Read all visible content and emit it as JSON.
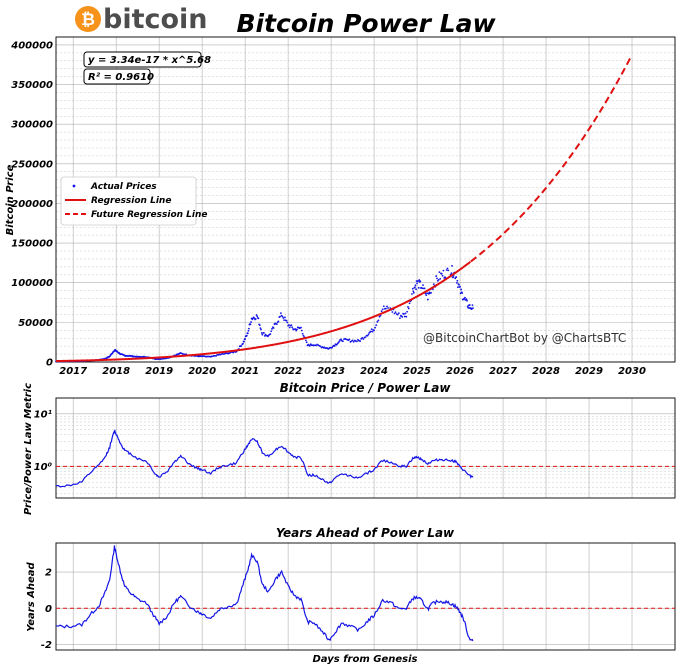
{
  "header": {
    "logo_text": "bitcoin",
    "logo_symbol": "₿",
    "title": "Bitcoin Power Law"
  },
  "watermark": "@BitcoinChartBot by @ChartsBTC",
  "colors": {
    "actual": "#1515e6",
    "regression": "#e01010",
    "reference": "#e01010",
    "logo_orange": "#f7931a"
  },
  "chart_data": [
    {
      "type": "scatter",
      "title": "",
      "xlabel": "",
      "ylabel": "Bitcoin Price",
      "xlim": [
        2016.6,
        2031.0
      ],
      "ylim": [
        0,
        410000
      ],
      "x_ticks": [
        2017,
        2018,
        2019,
        2020,
        2021,
        2022,
        2023,
        2024,
        2025,
        2026,
        2027,
        2028,
        2029,
        2030
      ],
      "y_ticks": [
        0,
        50000,
        100000,
        150000,
        200000,
        250000,
        300000,
        350000,
        400000
      ],
      "grid": true,
      "legend_position": "center-left",
      "legend": [
        "Actual Prices",
        "Regression Line",
        "Future Regression Line"
      ],
      "equation_box": [
        "y = 3.34e-17 * x^5.68",
        "R² = 0.9610"
      ],
      "regression": {
        "a": 3.34e-17,
        "b": 5.68,
        "x_variable": "days since genesis block"
      },
      "regression_end_year": 2026.25,
      "future_end_year": 2030.0,
      "series": [
        {
          "name": "Actual Prices",
          "style": "points",
          "x": [
            2016.6,
            2016.9,
            2017.2,
            2017.4,
            2017.6,
            2017.75,
            2017.85,
            2017.96,
            2018.0,
            2018.1,
            2018.2,
            2018.35,
            2018.5,
            2018.7,
            2018.9,
            2019.0,
            2019.2,
            2019.35,
            2019.5,
            2019.7,
            2019.9,
            2020.0,
            2020.2,
            2020.4,
            2020.6,
            2020.8,
            2020.95,
            2021.05,
            2021.15,
            2021.28,
            2021.4,
            2021.55,
            2021.7,
            2021.85,
            2022.0,
            2022.15,
            2022.3,
            2022.45,
            2022.6,
            2022.8,
            2022.95,
            2023.1,
            2023.25,
            2023.45,
            2023.65,
            2023.85,
            2024.0,
            2024.2,
            2024.4,
            2024.6,
            2024.75,
            2024.9,
            2025.0,
            2025.1,
            2025.25,
            2025.35,
            2025.5,
            2025.65,
            2025.8,
            2025.9,
            2026.0,
            2026.1,
            2026.2,
            2026.3
          ],
          "y": [
            600,
            800,
            1000,
            1800,
            2700,
            4300,
            7000,
            15000,
            14000,
            10000,
            8000,
            7500,
            6500,
            6500,
            4000,
            3600,
            5000,
            8000,
            11000,
            8500,
            7300,
            7200,
            6500,
            9200,
            11000,
            13500,
            24000,
            35000,
            55000,
            58000,
            36000,
            33000,
            47000,
            60000,
            47000,
            41000,
            43000,
            21000,
            22000,
            19000,
            16800,
            22000,
            28000,
            27000,
            26500,
            35000,
            42000,
            68000,
            66000,
            58000,
            60000,
            90000,
            100000,
            96000,
            82000,
            95000,
            107000,
            112000,
            115000,
            110000,
            90000,
            80000,
            70000,
            68000
          ]
        },
        {
          "name": "Regression Line",
          "style": "solid"
        },
        {
          "name": "Future Regression Line",
          "style": "dashed"
        }
      ]
    },
    {
      "type": "line",
      "title": "Bitcoin Price / Power Law",
      "xlabel": "",
      "ylabel": "Price/Power Law Metric",
      "scale": "log",
      "ylim": [
        0.25,
        20
      ],
      "y_ticks": [
        "10¹",
        "10⁰"
      ],
      "y_tick_values": [
        10,
        1
      ],
      "reference_line": 1,
      "x": [
        2016.6,
        2016.9,
        2017.2,
        2017.4,
        2017.6,
        2017.75,
        2017.85,
        2017.96,
        2018.0,
        2018.1,
        2018.2,
        2018.35,
        2018.5,
        2018.7,
        2018.9,
        2019.0,
        2019.2,
        2019.35,
        2019.5,
        2019.7,
        2019.9,
        2020.0,
        2020.2,
        2020.4,
        2020.6,
        2020.8,
        2020.95,
        2021.05,
        2021.15,
        2021.28,
        2021.4,
        2021.55,
        2021.7,
        2021.85,
        2022.0,
        2022.15,
        2022.3,
        2022.45,
        2022.6,
        2022.8,
        2022.95,
        2023.1,
        2023.25,
        2023.45,
        2023.65,
        2023.85,
        2024.0,
        2024.2,
        2024.4,
        2024.6,
        2024.75,
        2024.9,
        2025.0,
        2025.1,
        2025.25,
        2025.35,
        2025.5,
        2025.65,
        2025.8,
        2025.9,
        2026.0,
        2026.1,
        2026.2,
        2026.3
      ],
      "y": [
        0.42,
        0.43,
        0.5,
        0.75,
        1.05,
        1.5,
        2.3,
        4.6,
        4.1,
        2.7,
        2.0,
        1.7,
        1.4,
        1.25,
        0.72,
        0.62,
        0.82,
        1.2,
        1.55,
        1.1,
        0.9,
        0.87,
        0.73,
        0.97,
        1.05,
        1.15,
        1.85,
        2.4,
        3.3,
        3.0,
        1.8,
        1.55,
        2.05,
        2.45,
        1.85,
        1.5,
        1.45,
        0.68,
        0.68,
        0.56,
        0.47,
        0.6,
        0.72,
        0.66,
        0.6,
        0.75,
        0.85,
        1.3,
        1.2,
        1.0,
        1.0,
        1.4,
        1.5,
        1.38,
        1.12,
        1.25,
        1.35,
        1.33,
        1.3,
        1.22,
        0.96,
        0.82,
        0.68,
        0.62
      ]
    },
    {
      "type": "line",
      "title": "Years Ahead of Power Law",
      "xlabel": "Days from Genesis",
      "ylabel": "Years Ahead",
      "ylim": [
        -2.3,
        3.6
      ],
      "y_ticks": [
        2,
        0,
        -2
      ],
      "reference_line": 0,
      "x": [
        2016.6,
        2016.9,
        2017.2,
        2017.4,
        2017.6,
        2017.75,
        2017.85,
        2017.96,
        2018.0,
        2018.1,
        2018.2,
        2018.35,
        2018.5,
        2018.7,
        2018.9,
        2019.0,
        2019.2,
        2019.35,
        2019.5,
        2019.7,
        2019.9,
        2020.0,
        2020.2,
        2020.4,
        2020.6,
        2020.8,
        2020.95,
        2021.05,
        2021.15,
        2021.28,
        2021.4,
        2021.55,
        2021.7,
        2021.85,
        2022.0,
        2022.15,
        2022.3,
        2022.45,
        2022.6,
        2022.8,
        2022.95,
        2023.1,
        2023.25,
        2023.45,
        2023.65,
        2023.85,
        2024.0,
        2024.2,
        2024.4,
        2024.6,
        2024.75,
        2024.9,
        2025.0,
        2025.1,
        2025.25,
        2025.35,
        2025.5,
        2025.65,
        2025.8,
        2025.9,
        2026.0,
        2026.1,
        2026.2,
        2026.3
      ],
      "y": [
        -1.0,
        -1.0,
        -0.9,
        -0.35,
        0.15,
        0.9,
        1.6,
        3.4,
        3.0,
        2.0,
        1.2,
        0.8,
        0.5,
        0.3,
        -0.5,
        -0.85,
        -0.4,
        0.3,
        0.65,
        0.15,
        -0.2,
        -0.3,
        -0.55,
        -0.05,
        0.1,
        0.25,
        1.3,
        2.0,
        2.9,
        2.6,
        1.3,
        0.9,
        1.6,
        2.0,
        1.2,
        0.7,
        0.5,
        -0.75,
        -0.8,
        -1.3,
        -1.75,
        -1.3,
        -0.8,
        -1.0,
        -1.2,
        -0.7,
        -0.4,
        0.45,
        0.3,
        -0.05,
        0.0,
        0.55,
        0.6,
        0.45,
        -0.05,
        0.25,
        0.4,
        0.35,
        0.25,
        0.1,
        -0.2,
        -0.7,
        -1.6,
        -1.8
      ]
    }
  ]
}
